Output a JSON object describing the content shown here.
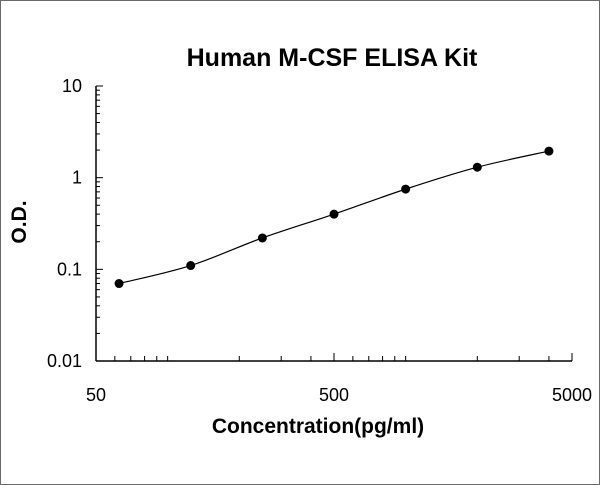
{
  "chart_data": {
    "type": "scatter",
    "title": "Human M-CSF ELISA Kit",
    "xlabel": "Concentration(pg/ml)",
    "ylabel": "O.D.",
    "x_scale": "log",
    "y_scale": "log",
    "xlim": [
      50,
      5000
    ],
    "ylim": [
      0.01,
      10
    ],
    "x_ticks": [
      50,
      500,
      5000
    ],
    "x_tick_labels": [
      "50",
      "500",
      "5000"
    ],
    "y_ticks": [
      0.01,
      0.1,
      1,
      10
    ],
    "y_tick_labels": [
      "0.01",
      "0.1",
      "1",
      "10"
    ],
    "grid": false,
    "legend": "none",
    "colors": {
      "line": "#000000",
      "points": "#000000",
      "axis": "#000000"
    },
    "series": [
      {
        "x": [
          62.5,
          125,
          250,
          500,
          1000,
          2000,
          4000
        ],
        "y": [
          0.07,
          0.11,
          0.22,
          0.4,
          0.75,
          1.3,
          1.95
        ]
      }
    ]
  }
}
